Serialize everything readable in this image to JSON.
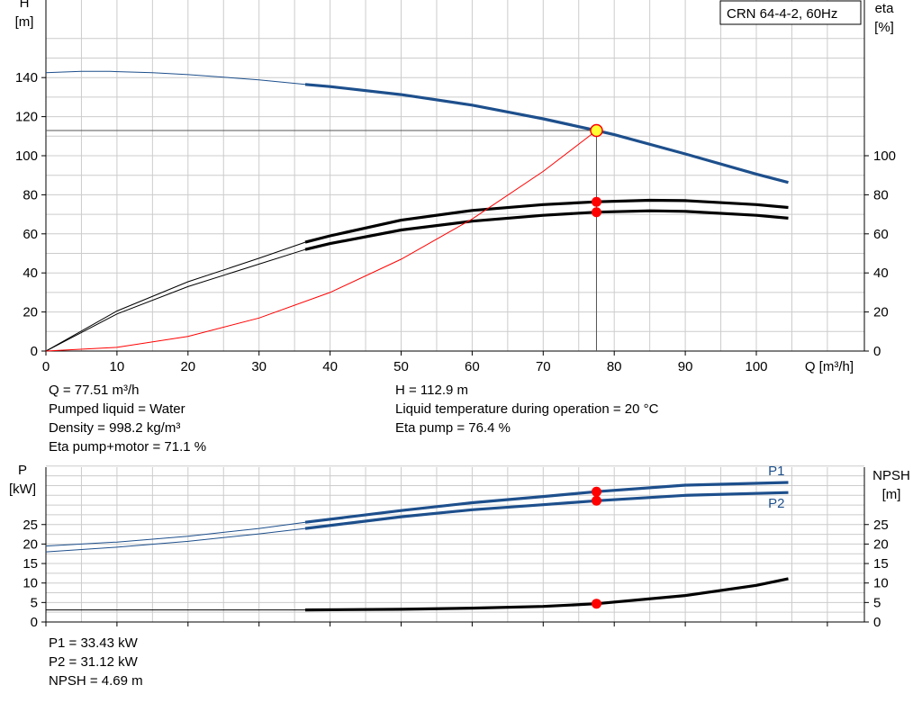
{
  "pump_model": "CRN 64-4-2, 60Hz",
  "colors": {
    "blue": "#1d4f8c",
    "black": "#000000",
    "red": "#ff0000",
    "duty_point": "#ffff33",
    "grid": "#cccccc"
  },
  "chart_data": [
    {
      "type": "line",
      "name": "head-efficiency",
      "x_axis": {
        "label": "Q [m³/h]",
        "range": [
          0,
          110
        ],
        "ticks": [
          0,
          10,
          20,
          30,
          40,
          50,
          60,
          70,
          80,
          90,
          100
        ]
      },
      "y_left": {
        "label_line1": "H",
        "label_line2": "[m]",
        "range": [
          0,
          160
        ],
        "ticks": [
          0,
          20,
          40,
          60,
          80,
          100,
          120,
          140
        ]
      },
      "y_right": {
        "label_line1": "eta",
        "label_line2": "[%]",
        "range": [
          0,
          160
        ],
        "ticks": [
          0,
          20,
          40,
          60,
          80,
          100
        ]
      },
      "legend_text": "CRN 64-4-2, 60Hz",
      "grid": true,
      "series": [
        {
          "key": "head",
          "color": "#1d4f8c",
          "thin": [
            [
              0,
              142.5
            ],
            [
              5,
              143.2
            ],
            [
              9,
              143.2
            ],
            [
              15,
              142.5
            ],
            [
              20,
              141.5
            ],
            [
              25,
              140.2
            ],
            [
              30,
              138.8
            ],
            [
              36.5,
              136.5
            ]
          ],
          "thick": [
            [
              36.5,
              136.5
            ],
            [
              40,
              135.4
            ],
            [
              50,
              131.3
            ],
            [
              60,
              125.9
            ],
            [
              70,
              118.9
            ],
            [
              77.5,
              112.9
            ],
            [
              80,
              110.8
            ],
            [
              90,
              100.9
            ],
            [
              100,
              90.6
            ],
            [
              104.5,
              86.3
            ]
          ]
        },
        {
          "key": "eta-pump",
          "color": "#000000",
          "thin": [
            [
              0,
              0
            ],
            [
              10,
              20.5
            ],
            [
              20,
              35.5
            ],
            [
              30,
              47.5
            ],
            [
              36.5,
              55.7
            ]
          ],
          "thick": [
            [
              36.5,
              55.7
            ],
            [
              40,
              59
            ],
            [
              50,
              67
            ],
            [
              60,
              72
            ],
            [
              70,
              75
            ],
            [
              77.5,
              76.4
            ],
            [
              85,
              77.2
            ],
            [
              90,
              77
            ],
            [
              100,
              75
            ],
            [
              104.5,
              73.5
            ]
          ]
        },
        {
          "key": "eta-pump-motor",
          "color": "#000000",
          "thin": [
            [
              0,
              0
            ],
            [
              10,
              19
            ],
            [
              20,
              33
            ],
            [
              30,
              44.5
            ],
            [
              36.5,
              52
            ]
          ],
          "thick": [
            [
              36.5,
              52
            ],
            [
              40,
              55
            ],
            [
              50,
              62
            ],
            [
              60,
              66.5
            ],
            [
              70,
              69.5
            ],
            [
              77.5,
              71.1
            ],
            [
              85,
              71.8
            ],
            [
              90,
              71.5
            ],
            [
              100,
              69.5
            ],
            [
              104.5,
              68
            ]
          ]
        },
        {
          "key": "system-curve",
          "color": "#ff0000",
          "thin": [
            [
              0,
              0
            ],
            [
              10,
              1.9
            ],
            [
              20,
              7.5
            ],
            [
              30,
              16.9
            ],
            [
              40,
              30
            ],
            [
              50,
              47
            ],
            [
              60,
              67.6
            ],
            [
              70,
              92
            ],
            [
              77.5,
              112.9
            ]
          ],
          "thick": []
        }
      ],
      "duty_point": {
        "q": 77.5,
        "h": 112.9,
        "eta_pump": 76.4,
        "eta_pump_motor": 71.1
      }
    },
    {
      "type": "line",
      "name": "power-npsh",
      "x_axis": {
        "range": [
          0,
          110
        ]
      },
      "y_left": {
        "label_line1": "P",
        "label_line2": "[kW]",
        "range": [
          0,
          40
        ],
        "ticks": [
          0,
          5,
          10,
          15,
          20,
          25
        ]
      },
      "y_right": {
        "label_line1": "NPSH",
        "label_line2": "[m]",
        "range": [
          0,
          40
        ],
        "ticks": [
          0,
          5,
          10,
          15,
          20,
          25
        ]
      },
      "grid": true,
      "series": [
        {
          "key": "P1",
          "name": "P1",
          "color": "#1d4f8c",
          "thin": [
            [
              0,
              19.5
            ],
            [
              10,
              20.5
            ],
            [
              20,
              22
            ],
            [
              30,
              24
            ],
            [
              36.5,
              25.6
            ]
          ],
          "thick": [
            [
              36.5,
              25.6
            ],
            [
              50,
              28.6
            ],
            [
              60,
              30.6
            ],
            [
              70,
              32.2
            ],
            [
              77.5,
              33.43
            ],
            [
              90,
              35.1
            ],
            [
              104.5,
              35.8
            ]
          ]
        },
        {
          "key": "P2",
          "name": "P2",
          "color": "#1d4f8c",
          "thin": [
            [
              0,
              18
            ],
            [
              10,
              19.2
            ],
            [
              20,
              20.7
            ],
            [
              30,
              22.6
            ],
            [
              36.5,
              24
            ]
          ],
          "thick": [
            [
              36.5,
              24
            ],
            [
              50,
              27
            ],
            [
              60,
              28.8
            ],
            [
              70,
              30.1
            ],
            [
              77.5,
              31.12
            ],
            [
              90,
              32.5
            ],
            [
              104.5,
              33.2
            ]
          ]
        },
        {
          "key": "NPSH",
          "color": "#000000",
          "thin": [
            [
              0,
              3.1
            ],
            [
              36.5,
              3.1
            ]
          ],
          "thick": [
            [
              36.5,
              3.1
            ],
            [
              50,
              3.25
            ],
            [
              60,
              3.55
            ],
            [
              70,
              4
            ],
            [
              77.5,
              4.69
            ],
            [
              90,
              6.8
            ],
            [
              100,
              9.4
            ],
            [
              104.5,
              11.1
            ]
          ]
        }
      ],
      "duty_point": {
        "q": 77.5,
        "p1": 33.43,
        "p2": 31.12,
        "npsh": 4.69
      }
    }
  ],
  "results_top_left": [
    "Q = 77.51 m³/h",
    "Pumped liquid = Water",
    "Density = 998.2 kg/m³",
    "Eta pump+motor = 71.1 %"
  ],
  "results_top_right": [
    "H = 112.9 m",
    "Liquid temperature during operation = 20 °C",
    "Eta pump = 76.4 %"
  ],
  "results_bottom": [
    "P1 = 33.43 kW",
    "P2 = 31.12 kW",
    "NPSH = 4.69 m"
  ]
}
